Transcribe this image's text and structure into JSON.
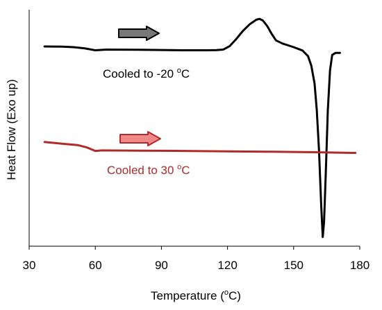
{
  "chart_data": {
    "type": "line",
    "title": "",
    "xlabel": "Temperature (",
    "xlabel_sup": "o",
    "xlabel_end": "C)",
    "ylabel": "Heat Flow (Exo up)",
    "xlim": [
      30,
      180
    ],
    "ylim": [
      0,
      100
    ],
    "xticks": [
      30,
      60,
      90,
      120,
      150,
      180
    ],
    "y_tick_labels": false,
    "grid": false,
    "series": [
      {
        "label_main": "Cooled to -20 ",
        "label_sup": "o",
        "label_end": "C",
        "color": "#000000",
        "points": [
          [
            37,
            86.6
          ],
          [
            45,
            86.5
          ],
          [
            50,
            86.3
          ],
          [
            55,
            85.8
          ],
          [
            60,
            84.9
          ],
          [
            65,
            85.2
          ],
          [
            80,
            85.1
          ],
          [
            100,
            84.9
          ],
          [
            110,
            84.9
          ],
          [
            115,
            85.0
          ],
          [
            118,
            85.2
          ],
          [
            121,
            86.8
          ],
          [
            124,
            90.0
          ],
          [
            127,
            93.6
          ],
          [
            130,
            96.5
          ],
          [
            133,
            98.6
          ],
          [
            134.5,
            99.0
          ],
          [
            136,
            98.3
          ],
          [
            138,
            95.8
          ],
          [
            140,
            92.3
          ],
          [
            142,
            89.3
          ],
          [
            145,
            87.9
          ],
          [
            150,
            86.3
          ],
          [
            154,
            84.8
          ],
          [
            156.5,
            82.3
          ],
          [
            158,
            78.0
          ],
          [
            159.5,
            70.0
          ],
          [
            160.5,
            58.0
          ],
          [
            161.5,
            40.0
          ],
          [
            162.5,
            15.0
          ],
          [
            163.2,
            1.0
          ],
          [
            163.8,
            8.0
          ],
          [
            164.6,
            30.0
          ],
          [
            165.5,
            58.0
          ],
          [
            166.5,
            76.0
          ],
          [
            167.5,
            82.8
          ],
          [
            169,
            83.7
          ],
          [
            171,
            83.7
          ]
        ]
      },
      {
        "label_main": "Cooled to 30 ",
        "label_sup": "o",
        "label_end": "C",
        "color": "#b02a2a",
        "points": [
          [
            37,
            43.7
          ],
          [
            45,
            42.9
          ],
          [
            52,
            42.3
          ],
          [
            56,
            41.3
          ],
          [
            60,
            39.7
          ],
          [
            63,
            39.9
          ],
          [
            80,
            39.8
          ],
          [
            100,
            39.7
          ],
          [
            120,
            39.5
          ],
          [
            140,
            39.3
          ],
          [
            160,
            39.1
          ],
          [
            178,
            38.8
          ]
        ]
      }
    ],
    "annotations": [
      {
        "type": "arrow",
        "series_index": 0,
        "direction": "right",
        "fill": "#777777",
        "stroke": "#000000"
      },
      {
        "type": "arrow",
        "series_index": 1,
        "direction": "right",
        "fill": "#f08888",
        "stroke": "#b02a2a"
      }
    ]
  }
}
